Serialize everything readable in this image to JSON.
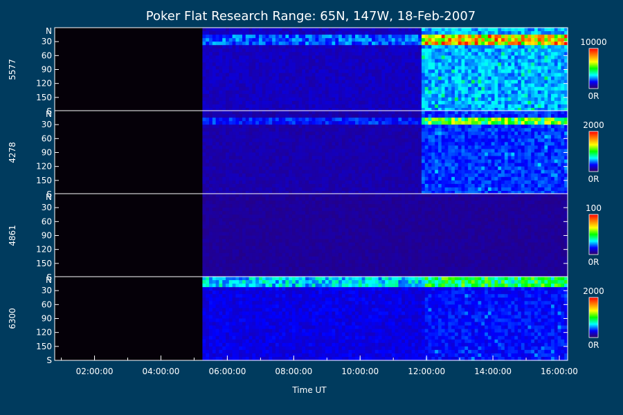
{
  "chart_data": {
    "type": "heatmap",
    "title": "Poker Flat Research Range: 65N, 147W, 18-Feb-2007",
    "xlabel": "Time UT",
    "x_ticks": [
      "02:00:00",
      "04:00:00",
      "06:00:00",
      "08:00:00",
      "10:00:00",
      "12:00:00",
      "14:00:00",
      "16:00:00"
    ],
    "x_range_hours_ut": [
      0.8,
      16.25
    ],
    "y_ticks": [
      "N",
      "30",
      "60",
      "90",
      "120",
      "150",
      "S"
    ],
    "y_range_deg": [
      0,
      180
    ],
    "panels": [
      {
        "wavelength": "5577",
        "color_max": "10000",
        "color_min": "0R",
        "data_start_ut": 5.25,
        "onset_ut": 11.85,
        "bright_band_deg": [
          18,
          35
        ],
        "quiet_level": 0.25,
        "active_level": 1.0
      },
      {
        "wavelength": "4278",
        "color_max": "2000",
        "color_min": "0R",
        "data_start_ut": 5.25,
        "onset_ut": 11.85,
        "bright_band_deg": [
          15,
          30
        ],
        "quiet_level": 0.2,
        "active_level": 0.7
      },
      {
        "wavelength": "4861",
        "color_max": "100",
        "color_min": "0R",
        "data_start_ut": 5.25,
        "onset_ut": 16.0,
        "bright_band_deg": [
          0,
          0
        ],
        "quiet_level": 0.15,
        "active_level": 0.2
      },
      {
        "wavelength": "6300",
        "color_max": "2000",
        "color_min": "0R",
        "data_start_ut": 5.25,
        "onset_ut": 12.0,
        "bright_band_deg": [
          0,
          25
        ],
        "quiet_level": 0.35,
        "active_level": 0.6
      }
    ],
    "colors": {
      "background": "#003b5e",
      "no_data": "#050008",
      "colorbar": [
        "#300060",
        "#0000ff",
        "#00ffff",
        "#00ff00",
        "#ffff00",
        "#ff8000",
        "#ff0000"
      ]
    }
  }
}
